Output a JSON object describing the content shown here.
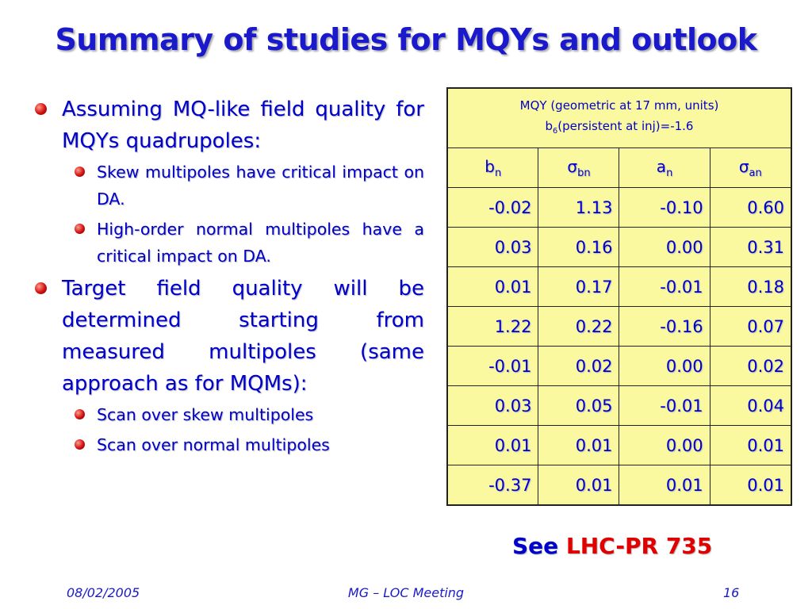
{
  "title": "Summary of studies for MQYs and outlook",
  "bullets": [
    {
      "text": "Assuming MQ-like field quality for MQYs quadrupoles:",
      "sub": [
        "Skew multipoles have critical impact on DA.",
        "High-order normal multipoles have a critical impact on DA."
      ]
    },
    {
      "text": "Target field quality will be determined starting from measured multipoles (same approach as for MQMs):",
      "sub": [
        "Scan over skew multipoles",
        "Scan over normal multipoles"
      ]
    }
  ],
  "table": {
    "caption_line1": "MQY (geometric at 17 mm, units)",
    "caption_line2": {
      "base": "b",
      "sub": "6",
      "rest": "(persistent at inj)=-1.6"
    },
    "columns": [
      {
        "base": "b",
        "sub": "n"
      },
      {
        "base": "σ",
        "sub": "bn"
      },
      {
        "base": "a",
        "sub": "n"
      },
      {
        "base": "σ",
        "sub": "an"
      }
    ],
    "rows": [
      [
        "-0.02",
        "1.13",
        "-0.10",
        "0.60"
      ],
      [
        "0.03",
        "0.16",
        "0.00",
        "0.31"
      ],
      [
        "0.01",
        "0.17",
        "-0.01",
        "0.18"
      ],
      [
        "1.22",
        "0.22",
        "-0.16",
        "0.07"
      ],
      [
        "-0.01",
        "0.02",
        "0.00",
        "0.02"
      ],
      [
        "0.03",
        "0.05",
        "-0.01",
        "0.04"
      ],
      [
        "0.01",
        "0.01",
        "0.00",
        "0.01"
      ],
      [
        "-0.37",
        "0.01",
        "0.01",
        "0.01"
      ]
    ]
  },
  "reference": {
    "prefix": "See",
    "link": "LHC-PR 735"
  },
  "footer": {
    "date": "08/02/2005",
    "center": "MG – LOC Meeting",
    "page": "16"
  }
}
